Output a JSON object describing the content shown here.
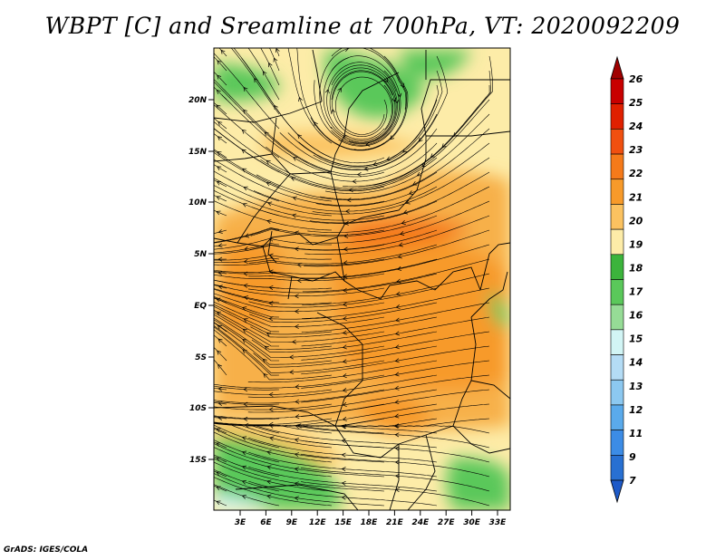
{
  "title": "WBPT [C] and Sreamline at 700hPa, VT: 2020092209",
  "footer": "GrADS: IGES/COLA",
  "map": {
    "lat_labels": [
      "20N",
      "15N",
      "10N",
      "5N",
      "EQ",
      "5S",
      "10S",
      "15S"
    ],
    "lon_labels": [
      "3E",
      "6E",
      "9E",
      "12E",
      "15E",
      "18E",
      "21E",
      "24E",
      "27E",
      "30E",
      "33E"
    ]
  },
  "colorbar": {
    "levels": [
      "26",
      "25",
      "24",
      "23",
      "22",
      "21",
      "20",
      "19",
      "18",
      "17",
      "16",
      "15",
      "14",
      "13",
      "12",
      "11",
      "9",
      "7"
    ],
    "colors": [
      "#a00000",
      "#c80000",
      "#e02000",
      "#f05010",
      "#f57a1a",
      "#f79a2a",
      "#fbc260",
      "#fdeca8",
      "#3cb43c",
      "#5ac85a",
      "#96dc96",
      "#d2f5f5",
      "#b4dcf5",
      "#8cc8f0",
      "#5aaaeb",
      "#3c8ce6",
      "#2870d2",
      "#1e5ac8"
    ]
  }
}
